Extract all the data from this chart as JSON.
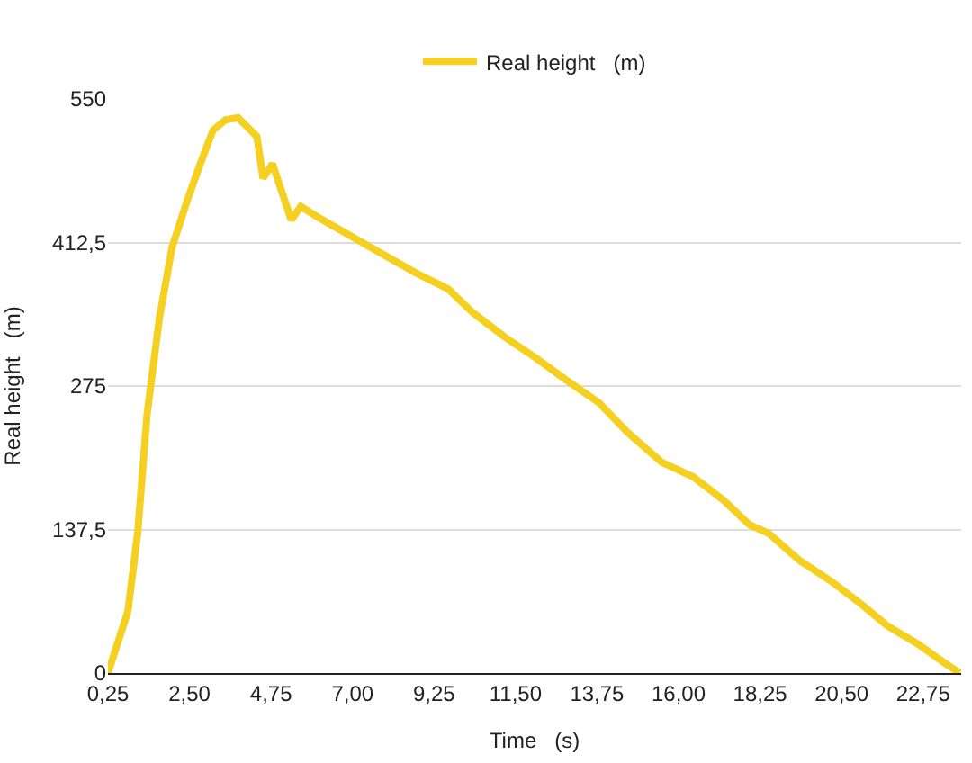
{
  "chart_data": {
    "type": "line",
    "xlabel": "Time   (s)",
    "ylabel": "Real height   (m)",
    "x": [
      0.25,
      0.8,
      1.07,
      1.33,
      1.67,
      2.02,
      2.45,
      2.8,
      3.15,
      3.49,
      3.84,
      4.36,
      4.53,
      4.79,
      5.31,
      5.57,
      6.18,
      7.04,
      7.9,
      8.77,
      9.64,
      10.33,
      11.2,
      12.06,
      12.93,
      13.8,
      14.58,
      15.53,
      16.4,
      17.26,
      17.96,
      18.48,
      19.34,
      20.21,
      21.08,
      21.77,
      22.64,
      23.33,
      23.76
    ],
    "series": [
      {
        "name": "Real height   (m)",
        "color": "#f5d020",
        "values": [
          0,
          59,
          134,
          248,
          340,
          408,
          454,
          488,
          520,
          530,
          532,
          514,
          474,
          488,
          434,
          447,
          434,
          417,
          400,
          383,
          368,
          345,
          322,
          302,
          280,
          259,
          231,
          202,
          188,
          165,
          142,
          134,
          108,
          88,
          65,
          45,
          27,
          10,
          0
        ]
      }
    ],
    "xlim": [
      0.25,
      23.8
    ],
    "xticks": [
      {
        "value": 0.25,
        "label": "0,25"
      },
      {
        "value": 2.5,
        "label": "2,50"
      },
      {
        "value": 4.75,
        "label": "4,75"
      },
      {
        "value": 7,
        "label": "7,00"
      },
      {
        "value": 9.25,
        "label": "9,25"
      },
      {
        "value": 11.5,
        "label": "11,50"
      },
      {
        "value": 13.75,
        "label": "13,75"
      },
      {
        "value": 16,
        "label": "16,00"
      },
      {
        "value": 18.25,
        "label": "18,25"
      },
      {
        "value": 20.5,
        "label": "20,50"
      },
      {
        "value": 22.75,
        "label": "22,75"
      }
    ],
    "ylim": [
      0,
      550
    ],
    "yticks": [
      0,
      {
        "value": 137.5,
        "label": "137,5"
      },
      275,
      {
        "value": 412.5,
        "label": "412,5"
      },
      550
    ],
    "grid": "y",
    "legend": "top",
    "marker": "none",
    "line_style": "solid"
  }
}
